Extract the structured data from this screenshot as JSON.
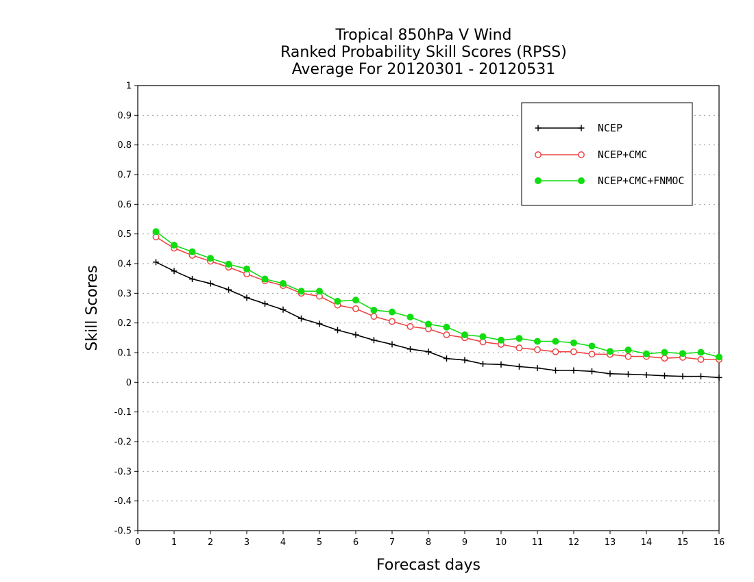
{
  "chart_data": {
    "type": "line",
    "title": [
      "Tropical 850hPa V Wind",
      "Ranked Probability Skill Scores (RPSS)",
      "Average For 20120301 - 20120531"
    ],
    "xlabel": "Forecast days",
    "ylabel": "Skill Scores",
    "xlim": [
      0,
      16
    ],
    "ylim": [
      -0.5,
      1
    ],
    "xticks": [
      0,
      1,
      2,
      3,
      4,
      5,
      6,
      7,
      8,
      9,
      10,
      11,
      12,
      13,
      14,
      15,
      16
    ],
    "yticks": [
      -0.5,
      -0.4,
      -0.3,
      -0.2,
      -0.1,
      0,
      0.1,
      0.2,
      0.3,
      0.4,
      0.5,
      0.6,
      0.7,
      0.8,
      0.9,
      1
    ],
    "ytick_labels": [
      "-0.5",
      "-0.4",
      "-0.3",
      "-0.2",
      "-0.1",
      "0",
      "0.1",
      "0.2",
      "0.3",
      "0.4",
      "0.5",
      "0.6",
      "0.7",
      "0.8",
      "0.9",
      "1"
    ],
    "grid": "horizontal dotted",
    "legend_position": "top-right",
    "x": [
      0.5,
      1,
      1.5,
      2,
      2.5,
      3,
      3.5,
      4,
      4.5,
      5,
      5.5,
      6,
      6.5,
      7,
      7.5,
      8,
      8.5,
      9,
      9.5,
      10,
      10.5,
      11,
      11.5,
      12,
      12.5,
      13,
      13.5,
      14,
      14.5,
      15,
      15.5,
      16
    ],
    "series": [
      {
        "name": "NCEP",
        "color": "#000000",
        "marker": "plus",
        "values": [
          0.405,
          0.375,
          0.348,
          0.333,
          0.312,
          0.285,
          0.265,
          0.245,
          0.215,
          0.197,
          0.176,
          0.16,
          0.142,
          0.128,
          0.112,
          0.103,
          0.08,
          0.075,
          0.062,
          0.06,
          0.053,
          0.048,
          0.04,
          0.04,
          0.037,
          0.029,
          0.027,
          0.025,
          0.022,
          0.02,
          0.02,
          0.016
        ]
      },
      {
        "name": "NCEP+CMC",
        "color": "#ee4444",
        "marker": "open-circle",
        "values": [
          0.49,
          0.452,
          0.428,
          0.408,
          0.388,
          0.365,
          0.342,
          0.326,
          0.3,
          0.29,
          0.26,
          0.248,
          0.222,
          0.205,
          0.188,
          0.18,
          0.16,
          0.15,
          0.136,
          0.128,
          0.116,
          0.11,
          0.103,
          0.103,
          0.095,
          0.094,
          0.087,
          0.087,
          0.081,
          0.084,
          0.077,
          0.077
        ]
      },
      {
        "name": "NCEP+CMC+FNMOC",
        "color": "#11dd11",
        "marker": "filled-circle",
        "values": [
          0.508,
          0.462,
          0.44,
          0.418,
          0.398,
          0.382,
          0.348,
          0.333,
          0.307,
          0.307,
          0.273,
          0.277,
          0.243,
          0.237,
          0.22,
          0.196,
          0.186,
          0.16,
          0.154,
          0.142,
          0.148,
          0.138,
          0.138,
          0.133,
          0.122,
          0.104,
          0.109,
          0.096,
          0.101,
          0.097,
          0.101,
          0.085
        ]
      }
    ]
  }
}
